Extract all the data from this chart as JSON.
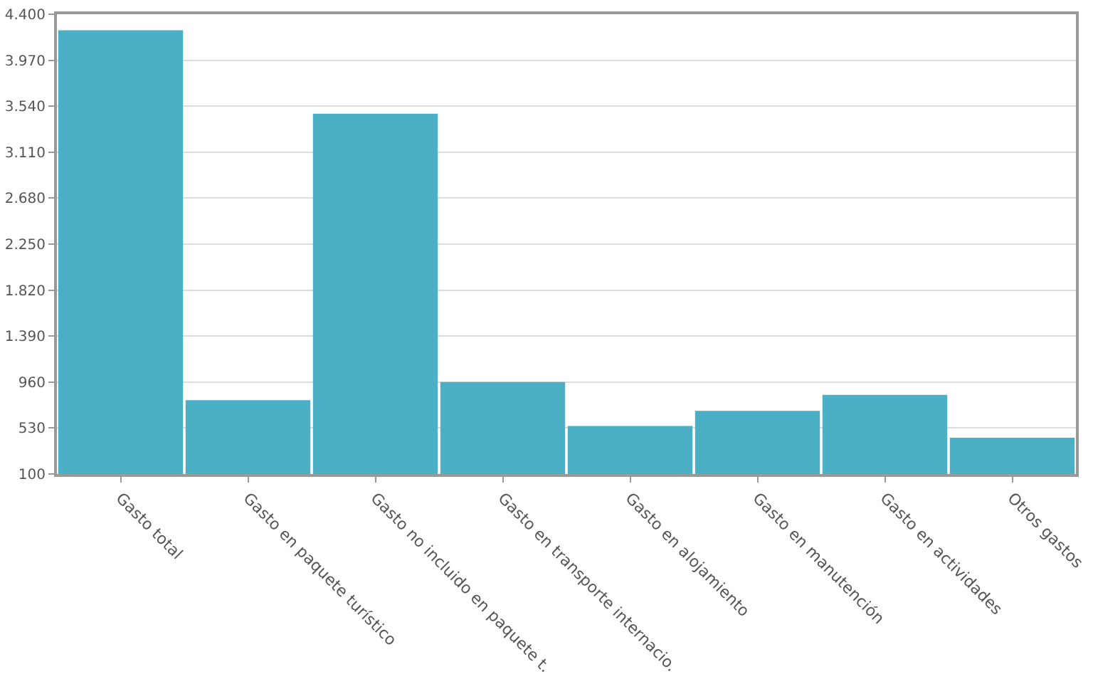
{
  "chart_data": {
    "type": "bar",
    "categories": [
      "Gasto total",
      "Gasto en paquete turístico",
      "Gasto no incluido en paquete t.",
      "Gasto en transporte internacio.",
      "Gasto en alojamiento",
      "Gasto en manutención",
      "Gasto en actividades",
      "Otros gastos"
    ],
    "values": [
      4250,
      790,
      3470,
      960,
      550,
      690,
      840,
      440
    ],
    "color": "#4bb0c6",
    "ylim": [
      100,
      4400
    ],
    "yticks": [
      100,
      530,
      960,
      {
        "value": 1390,
        "label": "1.390"
      },
      {
        "value": 1820,
        "label": "1.820"
      },
      {
        "value": 2250,
        "label": "2.250"
      },
      {
        "value": 2680,
        "label": "2.680"
      },
      {
        "value": 3110,
        "label": "3.110"
      },
      {
        "value": 3540,
        "label": "3.540"
      },
      {
        "value": 3970,
        "label": "3.970"
      },
      {
        "value": 4400,
        "label": "4.400"
      }
    ],
    "grid": "y"
  }
}
